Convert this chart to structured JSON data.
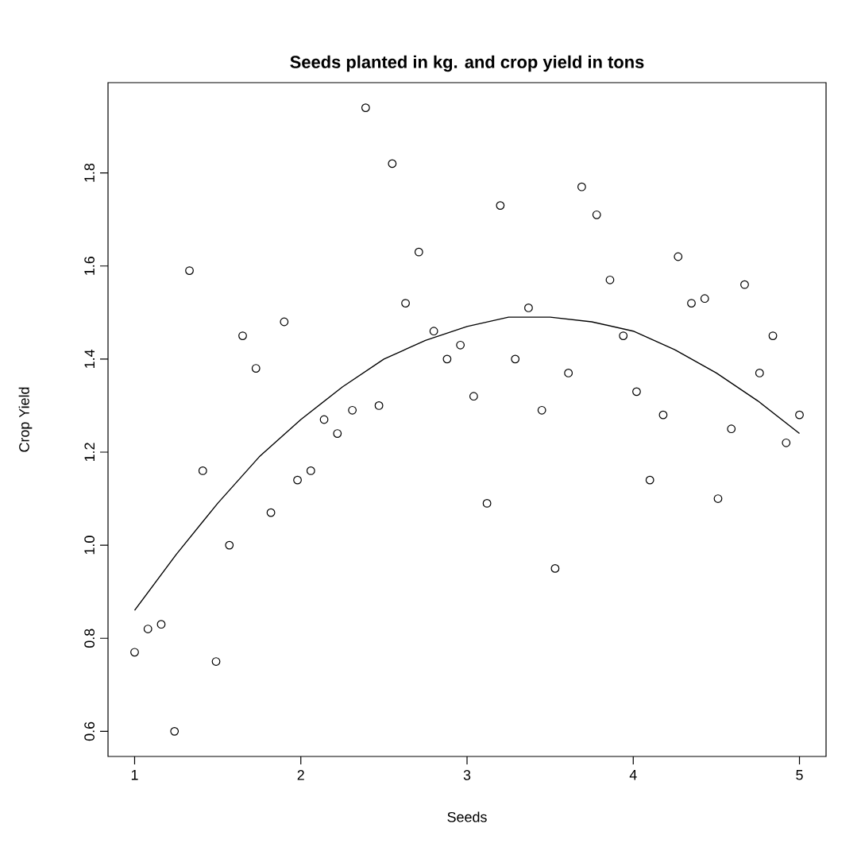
{
  "chart_data": {
    "type": "scatter",
    "title": "Seeds planted in kg. and crop yield in tons",
    "xlabel": "Seeds",
    "ylabel": "Crop Yield",
    "xlim": [
      0.84,
      5.16
    ],
    "ylim": [
      0.546,
      1.994
    ],
    "xticks": [
      1,
      2,
      3,
      4,
      5
    ],
    "yticks": [
      0.6,
      0.8,
      {
        "value": 1.0,
        "label": "1.0"
      },
      1.2,
      1.4,
      1.6,
      1.8
    ],
    "marker": "circle",
    "grid": false,
    "series": [
      {
        "color": "#000000",
        "x": [
          1,
          1.08,
          1.16,
          1.24,
          1.33,
          1.41,
          1.49,
          1.57,
          1.65,
          1.73,
          1.82,
          1.9,
          1.98,
          2.06,
          2.14,
          2.22,
          2.31,
          2.39,
          2.47,
          2.55,
          2.63,
          2.71,
          2.8,
          2.88,
          2.96,
          3.04,
          3.12,
          3.2,
          3.29,
          3.37,
          3.45,
          3.53,
          3.61,
          3.69,
          3.78,
          3.86,
          3.94,
          4.02,
          4.1,
          4.18,
          4.27,
          4.35,
          4.43,
          4.51,
          4.59,
          4.67,
          4.76,
          4.84,
          4.92,
          5
        ],
        "values": [
          0.77,
          0.82,
          0.83,
          0.6,
          1.59,
          1.16,
          0.75,
          1.0,
          1.45,
          1.38,
          1.07,
          1.48,
          1.14,
          1.16,
          1.27,
          1.24,
          1.29,
          1.94,
          1.3,
          1.82,
          1.52,
          1.63,
          1.46,
          1.4,
          1.43,
          1.32,
          1.09,
          1.73,
          1.4,
          1.51,
          1.29,
          0.95,
          1.37,
          1.77,
          1.71,
          1.57,
          1.45,
          1.33,
          1.14,
          1.28,
          1.62,
          1.52,
          1.53,
          1.1,
          1.25,
          1.56,
          1.37,
          1.45,
          1.22,
          1.28
        ]
      },
      {
        "type": "line",
        "color": "#000000",
        "marker": "none",
        "x": [
          1,
          1.25,
          1.5,
          1.75,
          2,
          2.25,
          2.5,
          2.75,
          3,
          3.25,
          3.5,
          3.75,
          4,
          4.25,
          4.5,
          4.75,
          5
        ],
        "values": [
          0.86,
          0.98,
          1.09,
          1.19,
          1.27,
          1.34,
          1.4,
          1.44,
          1.47,
          1.49,
          1.49,
          1.48,
          1.46,
          1.42,
          1.37,
          1.31,
          1.24
        ]
      }
    ]
  }
}
